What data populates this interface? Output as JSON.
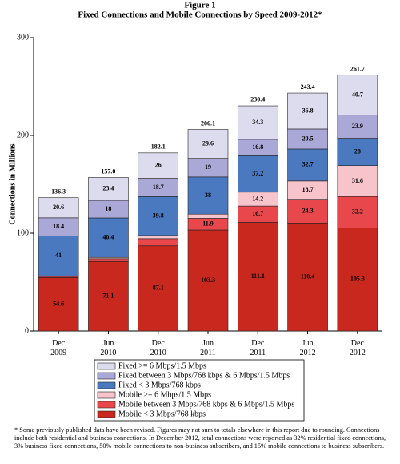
{
  "chart_data": {
    "type": "stacked-bar",
    "title": "Figure 1",
    "subtitle": "Fixed Connections and Mobile Connections by Speed 2009-2012*",
    "y_label": "Connections in Millions",
    "categories": [
      "Dec 2009",
      "Jun 2010",
      "Dec 2010",
      "Jun 2011",
      "Dec 2011",
      "Jun 2012",
      "Dec 2012"
    ],
    "series": [
      {
        "name": "Mobile < 3 Mbps/768 kbps",
        "color": "#c8281e",
        "values": [
          54.6,
          71.1,
          87.1,
          103.3,
          111.1,
          110.4,
          105.3
        ]
      },
      {
        "name": "Mobile between 3 Mbps/768 kbps & 6 Mbps/1.5 Mbps",
        "color": "#e8484c",
        "values": [
          1.2,
          2.8,
          7.3,
          11.9,
          16.7,
          24.3,
          32.2
        ]
      },
      {
        "name": "Mobile >= 6 Mbps/1.5 Mbps",
        "color": "#f7c4cc",
        "values": [
          0.5,
          1.3,
          3.2,
          4.3,
          14.2,
          18.7,
          31.6
        ]
      },
      {
        "name": "Fixed < 3 Mbps/768 kbps",
        "color": "#4a79c0",
        "values": [
          41.0,
          40.4,
          39.8,
          38.0,
          37.2,
          32.7,
          28.0
        ]
      },
      {
        "name": "Fixed between 3 Mbps/768 kbps & 6 Mbps/1.5 Mbps",
        "color": "#aaa8d6",
        "values": [
          18.4,
          18.0,
          18.7,
          19.0,
          16.8,
          20.5,
          23.9
        ]
      },
      {
        "name": "Fixed >= 6 Mbps/1.5 Mbps",
        "color": "#dddcee",
        "values": [
          20.6,
          23.4,
          26.0,
          29.6,
          34.3,
          36.8,
          40.7
        ]
      }
    ],
    "totals": [
      136.3,
      157.0,
      182.1,
      206.1,
      230.4,
      243.4,
      261.7
    ],
    "totals_labels": [
      "136.3",
      "157.0",
      "182.1",
      "206.1",
      "230.4",
      "243.4",
      "261.7"
    ],
    "ylim": [
      0,
      300
    ],
    "yticks": [
      0,
      100,
      200,
      300
    ],
    "footnote": "* Some previously published data have been revised. Figures may not sum to totals elsewhere in this report due to rounding. Connections include both residential and business connections. In December 2012, total connections were reported as 32% residential fixed connections, 3% business fixed connections, 50% mobile connections to non-business subscribers, and 15% mobile connections to business subscribers."
  }
}
